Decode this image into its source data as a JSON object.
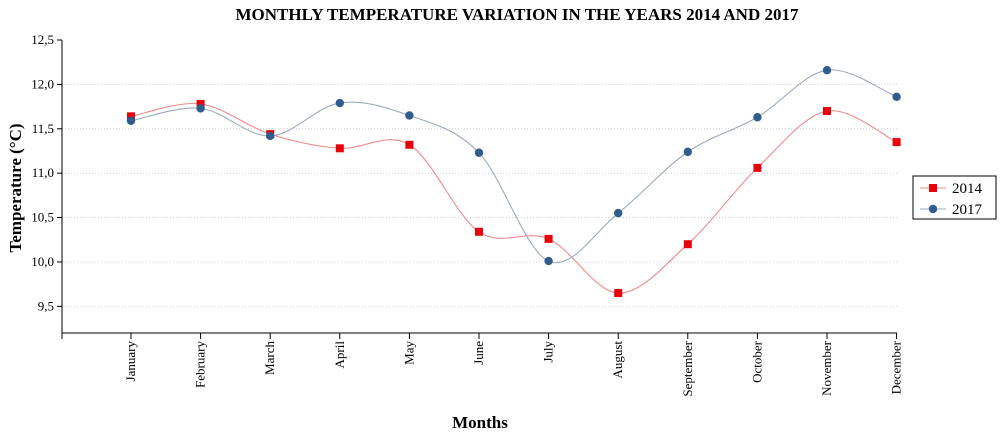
{
  "chart_data": {
    "type": "line",
    "title": "MONTHLY TEMPERATURE VARIATION IN THE YEARS 2014 AND 2017",
    "xlabel": "Months",
    "ylabel": "Temperature (°C)",
    "categories": [
      "January",
      "February",
      "March",
      "April",
      "May",
      "June",
      "July",
      "August",
      "September",
      "October",
      "November",
      "December"
    ],
    "ylim": [
      9.2,
      12.5
    ],
    "yticks": [
      "9,5",
      "10,0",
      "10,5",
      "11,0",
      "11,5",
      "12,0",
      "12,5"
    ],
    "ytick_values": [
      9.5,
      10.0,
      10.5,
      11.0,
      11.5,
      12.0,
      12.5
    ],
    "grid": "horizontal, dotted",
    "legend_position": "right",
    "smooth": true,
    "series": [
      {
        "name": "2014",
        "marker": "square",
        "color": "#e8000b",
        "values": [
          11.64,
          11.78,
          11.44,
          11.28,
          11.32,
          10.34,
          10.26,
          9.65,
          10.2,
          11.06,
          11.7,
          11.35
        ]
      },
      {
        "name": "2017",
        "marker": "circle",
        "color": "#2e5d8e",
        "values": [
          11.59,
          11.73,
          11.42,
          11.79,
          11.65,
          11.23,
          10.01,
          10.55,
          11.24,
          11.63,
          12.16,
          11.86
        ]
      }
    ]
  }
}
